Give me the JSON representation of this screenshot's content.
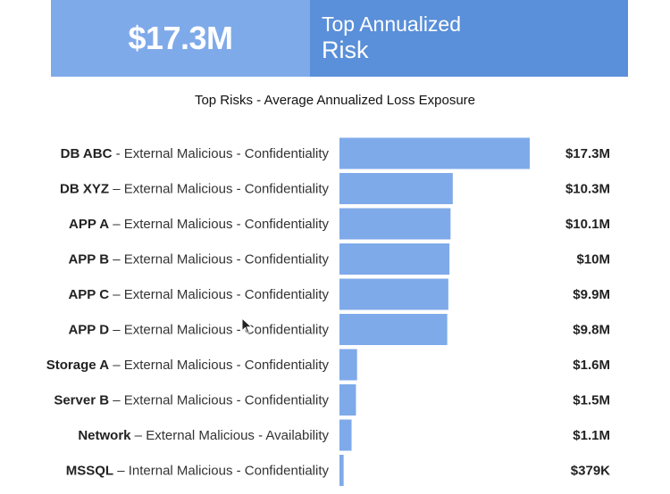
{
  "banner": {
    "value": "$17.3M",
    "title_line1": "Top Annualized",
    "title_line2": "Risk"
  },
  "chart_data": {
    "type": "bar",
    "orientation": "horizontal",
    "title": "Top Risks - Average Annualized Loss Exposure",
    "xlabel": "",
    "ylabel": "",
    "xlim": [
      0,
      17.3
    ],
    "unit": "$M",
    "grid": false,
    "bar_color": "#7faaea",
    "categories": [
      {
        "name": "DB ABC",
        "sep": " - ",
        "desc": "External Malicious - Confidentiality"
      },
      {
        "name": "DB XYZ",
        "sep": " – ",
        "desc": "External Malicious - Confidentiality"
      },
      {
        "name": "APP A",
        "sep": " – ",
        "desc": "External Malicious - Confidentiality"
      },
      {
        "name": "APP B",
        "sep": " – ",
        "desc": "External Malicious - Confidentiality"
      },
      {
        "name": "APP C",
        "sep": " – ",
        "desc": "External Malicious - Confidentiality"
      },
      {
        "name": "APP D",
        "sep": " – ",
        "desc": "External Malicious - Confidentiality"
      },
      {
        "name": "Storage A",
        "sep": " – ",
        "desc": "External Malicious - Confidentiality"
      },
      {
        "name": "Server B",
        "sep": "  – ",
        "desc": "External Malicious - Confidentiality"
      },
      {
        "name": "Network",
        "sep": " – ",
        "desc": "External Malicious - Availability"
      },
      {
        "name": "MSSQL",
        "sep": " – ",
        "desc": "Internal  Malicious - Confidentiality"
      }
    ],
    "values": [
      17.3,
      10.3,
      10.1,
      10.0,
      9.9,
      9.8,
      1.6,
      1.5,
      1.1,
      0.379
    ],
    "value_labels": [
      "$17.3M",
      "$10.3M",
      "$10.1M",
      "$10M",
      "$9.9M",
      "$9.8M",
      "$1.6M",
      "$1.5M",
      "$1.1M",
      "$379K"
    ]
  }
}
